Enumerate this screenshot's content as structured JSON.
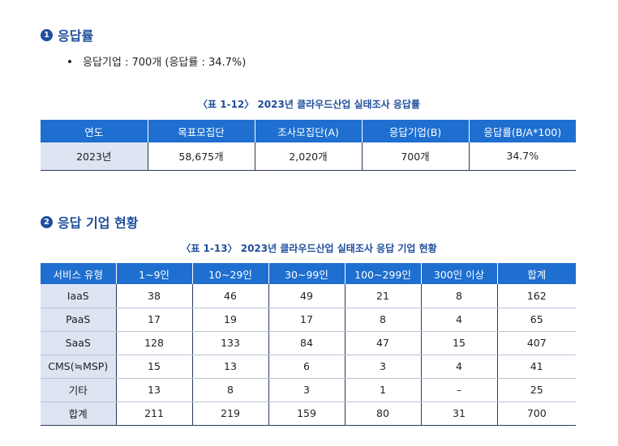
{
  "section1": {
    "number": "1",
    "title": "응답률",
    "bullet": "응답기업 : 700개 (응답률 : 34.7%)"
  },
  "table1": {
    "caption": "〈표 1-12〉 2023년 클라우드산업 실태조사 응답률",
    "headers": [
      "연도",
      "목표모집단",
      "조사모집단(A)",
      "응답기업(B)",
      "응답률(B/A*100)"
    ],
    "rows": [
      [
        "2023년",
        "58,675개",
        "2,020개",
        "700개",
        "34.7%"
      ]
    ]
  },
  "section2": {
    "number": "2",
    "title": "응답 기업 현황"
  },
  "table2": {
    "caption": "〈표 1-13〉 2023년 클라우드산업 실태조사 응답 기업 현황",
    "headers": [
      "서비스 유형",
      "1~9인",
      "10~29인",
      "30~99인",
      "100~299인",
      "300인 이상",
      "합계"
    ],
    "rows": [
      [
        "IaaS",
        "38",
        "46",
        "49",
        "21",
        "8",
        "162"
      ],
      [
        "PaaS",
        "17",
        "19",
        "17",
        "8",
        "4",
        "65"
      ],
      [
        "SaaS",
        "128",
        "133",
        "84",
        "47",
        "15",
        "407"
      ],
      [
        "CMS(≒MSP)",
        "15",
        "13",
        "6",
        "3",
        "4",
        "41"
      ],
      [
        "기타",
        "13",
        "8",
        "3",
        "1",
        "–",
        "25"
      ],
      [
        "합계",
        "211",
        "219",
        "159",
        "80",
        "31",
        "700"
      ]
    ]
  }
}
